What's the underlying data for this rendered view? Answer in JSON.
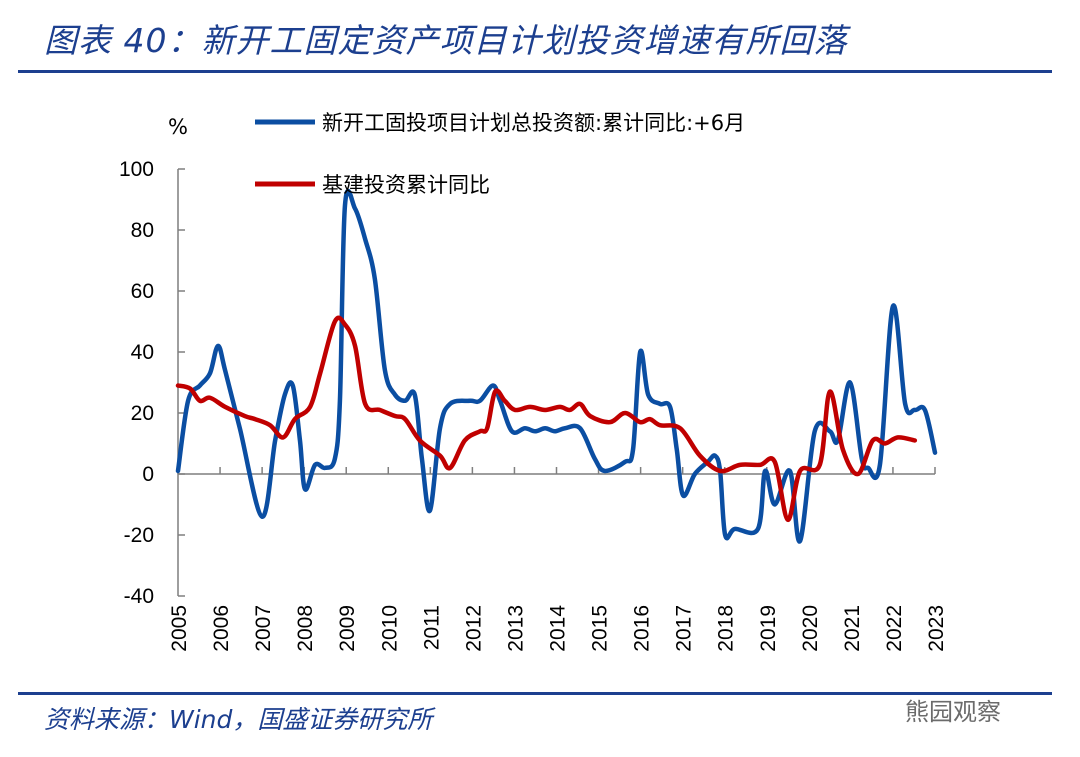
{
  "header": {
    "title": "图表 40：新开工固定资产项目计划投资增速有所回落"
  },
  "footer": {
    "source": "资料来源：Wind，国盛证券研究所",
    "watermark": "熊园观察"
  },
  "colors": {
    "blue": "#0b4ea2",
    "red": "#c00000",
    "brand": "#1c3f8f"
  },
  "chart_data": {
    "type": "line",
    "ylabel": "%",
    "ylim": [
      -40,
      100
    ],
    "yticks": [
      "100",
      "80",
      "60",
      "40",
      "20",
      "0",
      "-20",
      "-40"
    ],
    "xlim": [
      2005,
      2023
    ],
    "xticks": [
      "2005",
      "2006",
      "2007",
      "2008",
      "2009",
      "2010",
      "2011",
      "2012",
      "2013",
      "2014",
      "2015",
      "2016",
      "2017",
      "2018",
      "2019",
      "2020",
      "2021",
      "2022",
      "2023"
    ],
    "grid": false,
    "legend": "top",
    "series": [
      {
        "name": "新开工固投项目计划总投资额:累计同比:+6月",
        "color": "#0b4ea2",
        "x": [
          2005.0,
          2005.24,
          2005.52,
          2005.76,
          2005.95,
          2006.12,
          2006.47,
          2007.0,
          2007.31,
          2007.54,
          2007.73,
          2007.9,
          2008.02,
          2008.26,
          2008.5,
          2008.73,
          2008.85,
          2008.97,
          2009.21,
          2009.45,
          2009.68,
          2009.92,
          2010.16,
          2010.4,
          2010.63,
          2010.8,
          2010.99,
          2011.23,
          2011.47,
          2011.94,
          2012.18,
          2012.49,
          2012.66,
          2012.94,
          2013.25,
          2013.49,
          2013.73,
          2013.96,
          2014.2,
          2014.56,
          2014.91,
          2015.15,
          2015.63,
          2015.82,
          2015.99,
          2016.18,
          2016.46,
          2016.7,
          2016.86,
          2017.01,
          2017.29,
          2017.6,
          2017.77,
          2017.89,
          2018.01,
          2018.24,
          2018.79,
          2018.96,
          2019.19,
          2019.55,
          2019.79,
          2020.14,
          2020.5,
          2020.69,
          2020.98,
          2021.26,
          2021.41,
          2021.69,
          2022.0,
          2022.29,
          2022.52,
          2022.76,
          2023.0
        ],
        "values": [
          1,
          24,
          29,
          33,
          42,
          34,
          15,
          -14,
          11,
          26,
          29,
          11,
          -5,
          3,
          2,
          5,
          24,
          88,
          87,
          77,
          64,
          34,
          26,
          24,
          26,
          5,
          -12,
          15,
          23,
          24,
          24,
          29,
          24,
          14,
          15,
          14,
          15,
          14,
          15,
          15,
          5,
          1,
          4,
          8,
          40,
          26,
          23,
          22,
          8,
          -7,
          0,
          4,
          6,
          1,
          -20,
          -18,
          -18,
          1,
          -10,
          1,
          -22,
          14,
          14,
          11,
          30,
          5,
          2,
          3,
          55,
          23,
          21,
          21,
          7
        ]
      },
      {
        "name": "基建投资累计同比",
        "color": "#c00000",
        "x": [
          2005.0,
          2005.29,
          2005.52,
          2005.76,
          2006.12,
          2006.59,
          2006.83,
          2007.19,
          2007.5,
          2007.78,
          2008.14,
          2008.38,
          2008.73,
          2008.97,
          2009.21,
          2009.45,
          2009.8,
          2010.16,
          2010.4,
          2010.75,
          2011.23,
          2011.47,
          2011.82,
          2012.18,
          2012.35,
          2012.54,
          2012.77,
          2013.01,
          2013.37,
          2013.73,
          2014.08,
          2014.32,
          2014.56,
          2014.8,
          2015.27,
          2015.63,
          2015.99,
          2016.22,
          2016.46,
          2016.94,
          2017.41,
          2017.89,
          2018.36,
          2018.84,
          2019.19,
          2019.5,
          2019.79,
          2020.26,
          2020.5,
          2020.81,
          2021.17,
          2021.52,
          2021.81,
          2022.12,
          2022.52
        ],
        "values": [
          29,
          28,
          24,
          25,
          22,
          19,
          18,
          16,
          12,
          18,
          22,
          33,
          50,
          49,
          42,
          23,
          21,
          19,
          18,
          11,
          6,
          2,
          11,
          14,
          15,
          27,
          24,
          21,
          22,
          21,
          22,
          21,
          23,
          19,
          17,
          20,
          17,
          18,
          16,
          15,
          6,
          1,
          3,
          3,
          4,
          -15,
          1,
          3,
          27,
          8,
          0,
          11,
          10,
          12,
          11
        ]
      }
    ]
  }
}
